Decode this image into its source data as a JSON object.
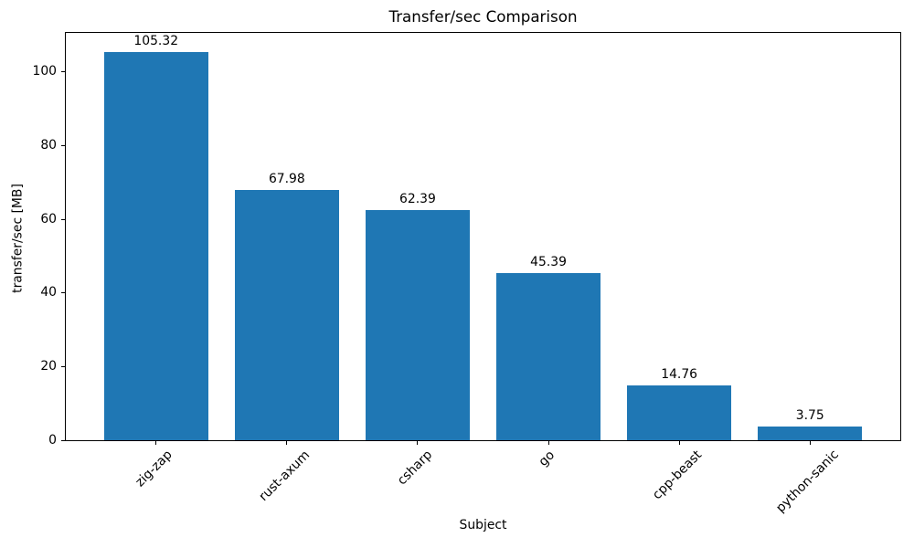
{
  "chart_data": {
    "type": "bar",
    "title": "Transfer/sec Comparison",
    "xlabel": "Subject",
    "ylabel": "transfer/sec [MB]",
    "categories": [
      "zig-zap",
      "rust-axum",
      "csharp",
      "go",
      "cpp-beast",
      "python-sanic"
    ],
    "values": [
      105.32,
      67.98,
      62.39,
      45.39,
      14.76,
      3.75
    ],
    "value_labels": [
      "105.32",
      "67.98",
      "62.39",
      "45.39",
      "14.76",
      "3.75"
    ],
    "yticks": [
      0,
      20,
      40,
      60,
      80,
      100
    ],
    "ytick_labels": [
      "0",
      "20",
      "40",
      "60",
      "80",
      "100"
    ],
    "ylim": [
      0,
      110.6
    ],
    "xtick_rotation_deg": 45,
    "grid": false,
    "legend": null,
    "colors": {
      "bar": "#1f77b4",
      "spine": "#000000",
      "text": "#000000",
      "background": "#ffffff"
    }
  }
}
